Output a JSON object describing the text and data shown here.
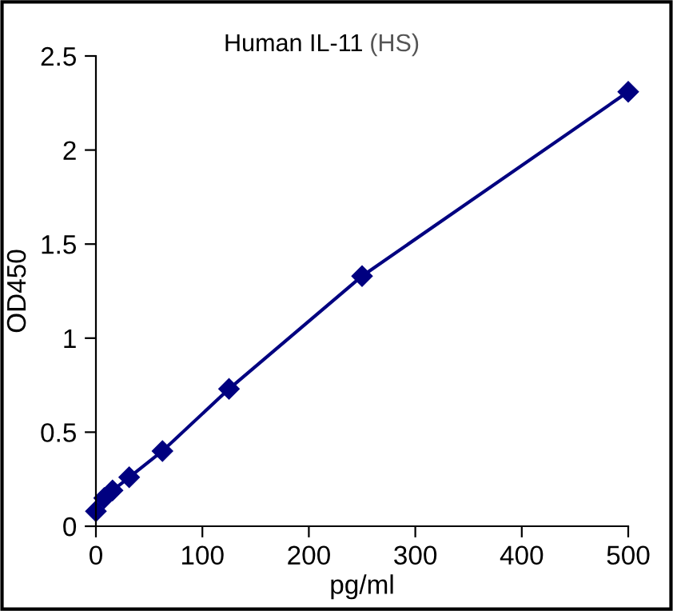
{
  "chart_data": {
    "type": "line",
    "title": "Human IL-11",
    "subtitle": "(HS)",
    "xlabel": "pg/ml",
    "ylabel": "OD450",
    "x": [
      0,
      7.8,
      15.6,
      31.25,
      62.5,
      125,
      250,
      500
    ],
    "series": [
      {
        "color": "#000080",
        "values": [
          0.08,
          0.15,
          0.19,
          0.26,
          0.4,
          0.73,
          1.33,
          2.31
        ]
      }
    ],
    "marker": "diamond",
    "line_style": "solid",
    "xlim": [
      0,
      500
    ],
    "xticks": [
      0,
      100,
      200,
      300,
      400,
      500
    ],
    "ylim": [
      0,
      2.5
    ],
    "yticks": [
      0,
      0.5,
      1,
      1.5,
      2,
      2.5
    ],
    "grid": false,
    "legend": false
  }
}
